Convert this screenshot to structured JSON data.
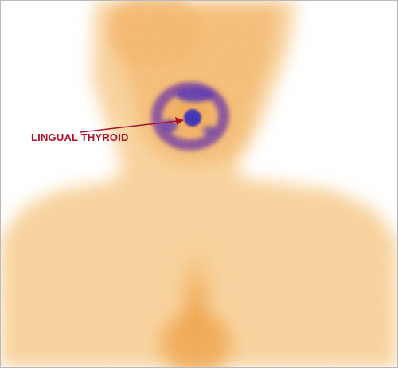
{
  "image": {
    "description_free": true
  },
  "annotation": {
    "label": "LINGUAL THYROID",
    "color": "#b0102a"
  },
  "colors": {
    "background": "#ffffff",
    "uptake_low": "#f6c98a",
    "uptake_mid": "#eea24a",
    "uptake_high": "#6a3fa8",
    "uptake_peak": "#2a2fb0"
  }
}
